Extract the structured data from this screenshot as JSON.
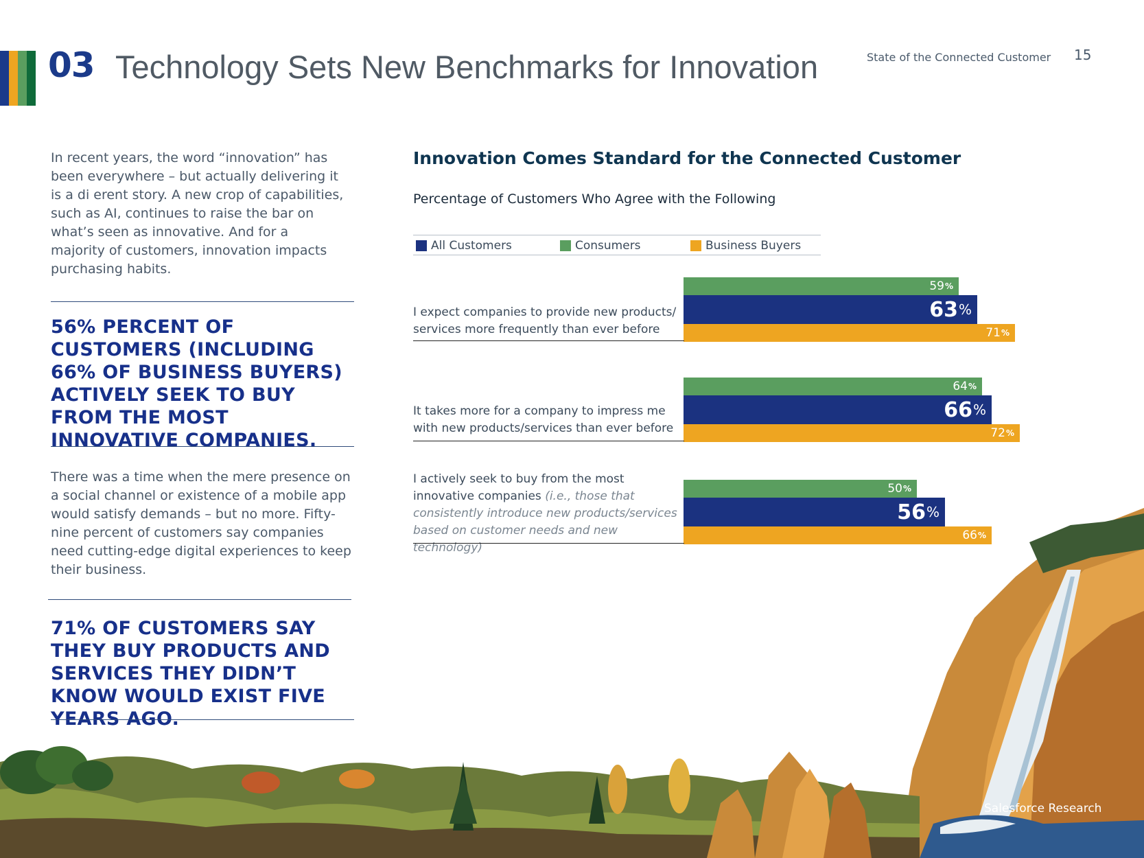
{
  "header": {
    "section_number": "03",
    "title": "Technology Sets New Benchmarks for Innovation",
    "report_name": "State of the Connected Customer",
    "page_number": "15"
  },
  "left_column": {
    "intro": "In recent years, the word “innovation” has been everywhere – but actually delivering it is a di erent story. A new crop of capabilities, such as AI, continues to raise the bar on what’s seen as innovative. And for a majority of customers, innovation impacts purchasing habits.",
    "callout_1": "56% percent of customers (including 66% of business buyers) actively seek to buy from the most innovative companies.",
    "body": "There was a time when the mere presence on a social channel or existence of a mobile app would satisfy demands – but no more. Fifty-nine percent of customers say companies need cutting-edge digital experiences to keep their business.",
    "callout_2": "71% of customers say they buy products and services they didn’t know would exist five years ago."
  },
  "footer": {
    "credit": "Salesforce Research"
  },
  "colors": {
    "all_customers": "#1b3280",
    "consumers": "#5a9e5f",
    "business_buyers": "#eea521",
    "accent_strip": [
      "#1b3a8a",
      "#eea521",
      "#5a9e5f",
      "#1b3a8a"
    ]
  },
  "chart_data": {
    "type": "bar",
    "orientation": "horizontal",
    "title": "Innovation Comes Standard for the Connected Customer",
    "subtitle": "Percentage of Customers Who Agree with the Following",
    "legend_position": "top",
    "value_suffix": "%",
    "xlim": [
      0,
      100
    ],
    "categories": [
      "I expect companies to provide new products/ services more frequently than ever before",
      "It takes more for a company to impress me with new products/services than ever before",
      "I actively seek to buy from the most innovative companies"
    ],
    "category_notes": [
      "",
      "",
      "(i.e., those that consistently introduce new products/services based on customer needs and new technology)"
    ],
    "series": [
      {
        "name": "All Customers",
        "values": [
          63,
          66,
          56
        ]
      },
      {
        "name": "Consumers",
        "values": [
          59,
          64,
          50
        ]
      },
      {
        "name": "Business Buyers",
        "values": [
          71,
          72,
          66
        ]
      }
    ]
  }
}
